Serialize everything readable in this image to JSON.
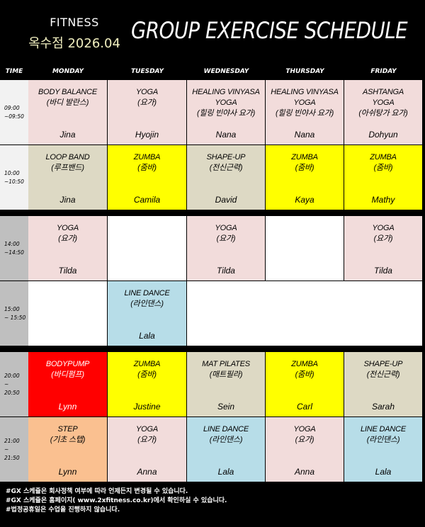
{
  "header": {
    "brand": "FITNESS",
    "branch": "옥수점 2026.04",
    "title": "GROUP EXERCISE SCHEDULE"
  },
  "days": [
    "TIME",
    "MONDAY",
    "TUESDAY",
    "WEDNESDAY",
    "THURSDAY",
    "FRIDAY"
  ],
  "colors": {
    "pink": "#f2dcdb",
    "tan": "#ddd9c4",
    "yellow": "#ffff00",
    "blue": "#b7dde8",
    "red": "#ff0000",
    "orange": "#fac090",
    "white": "#ffffff"
  },
  "rows": [
    {
      "time": "09:00\n~09:50",
      "time_bg": "#f2f2f2",
      "cells": [
        {
          "name": "BODY BALANCE\n(바디 발란스)",
          "instructor": "Jina",
          "color": "pink"
        },
        {
          "name": "YOGA\n(요가)",
          "instructor": "Hyojin",
          "color": "pink"
        },
        {
          "name": "HEALING VINYASA\nYOGA\n(힐링 빈야사 요가)",
          "instructor": "Nana",
          "color": "pink"
        },
        {
          "name": "HEALING VINYASA\nYOGA\n(힐링 빈야사 요가)",
          "instructor": "Nana",
          "color": "pink"
        },
        {
          "name": "ASHTANGA\nYOGA\n(아쉬탕가 요가)",
          "instructor": "Dohyun",
          "color": "pink"
        }
      ]
    },
    {
      "time": "10:00\n~10:50",
      "time_bg": "#f2f2f2",
      "cells": [
        {
          "name": "LOOP BAND\n(루프밴드)",
          "instructor": "Jina",
          "color": "tan"
        },
        {
          "name": "ZUMBA\n(줌바)",
          "instructor": "Camila",
          "color": "yellow"
        },
        {
          "name": "SHAPE-UP\n(전신근력)",
          "instructor": "David",
          "color": "tan"
        },
        {
          "name": "ZUMBA\n(줌바)",
          "instructor": "Kaya",
          "color": "yellow"
        },
        {
          "name": "ZUMBA\n(줌바)",
          "instructor": "Mathy",
          "color": "yellow"
        }
      ]
    },
    {
      "time": "14:00\n~14:50",
      "time_bg": "#bfbfbf",
      "gap": true,
      "cells": [
        {
          "name": "YOGA\n(요가)",
          "instructor": "Tilda",
          "color": "pink"
        },
        {
          "name": "",
          "instructor": "",
          "color": "white"
        },
        {
          "name": "YOGA\n(요가)",
          "instructor": "Tilda",
          "color": "pink"
        },
        {
          "name": "",
          "instructor": "",
          "color": "white"
        },
        {
          "name": "YOGA\n(요가)",
          "instructor": "Tilda",
          "color": "pink"
        }
      ]
    },
    {
      "time": "15:00\n~ 15:50",
      "time_bg": "#bfbfbf",
      "cells": [
        {
          "name": "",
          "instructor": "",
          "color": "white"
        },
        {
          "name": "LINE DANCE\n(라인댄스)",
          "instructor": "Lala",
          "color": "blue"
        },
        {
          "name": "",
          "instructor": "",
          "color": "white",
          "span": 3
        }
      ]
    },
    {
      "time": "20:00\n~\n20:50",
      "time_bg": "#bfbfbf",
      "gap": true,
      "cells": [
        {
          "name": "BODYPUMP\n(바디펌프)",
          "instructor": "Lynn",
          "color": "red"
        },
        {
          "name": "ZUMBA\n(줌바)",
          "instructor": "Justine",
          "color": "yellow"
        },
        {
          "name": "MAT PILATES\n(매트필라)",
          "instructor": "Sein",
          "color": "tan"
        },
        {
          "name": "ZUMBA\n(줌바)",
          "instructor": "Carl",
          "color": "yellow"
        },
        {
          "name": "SHAPE-UP\n(전신근력)",
          "instructor": "Sarah",
          "color": "tan"
        }
      ]
    },
    {
      "time": "21:00\n~\n21:50",
      "time_bg": "#bfbfbf",
      "cells": [
        {
          "name": "STEP\n(기초 스텝)",
          "instructor": "Lynn",
          "color": "orange"
        },
        {
          "name": "YOGA\n(요가)",
          "instructor": "Anna",
          "color": "pink"
        },
        {
          "name": "LINE DANCE\n(라인댄스)",
          "instructor": "Lala",
          "color": "blue"
        },
        {
          "name": "YOGA\n(요가)",
          "instructor": "Anna",
          "color": "pink"
        },
        {
          "name": "LINE DANCE\n(라인댄스)",
          "instructor": "Lala",
          "color": "blue"
        }
      ]
    }
  ],
  "footer": [
    "#GX 스케쥴은 회사정책 여부에 따라 언제든지 변경될 수 있습니다.",
    "#GX 스케쥴은 홈페이지( www.2xfitness.co.kr)에서 확인하실 수 있습니다.",
    "#법정공휴일은 수업을 진행하지 않습니다."
  ]
}
